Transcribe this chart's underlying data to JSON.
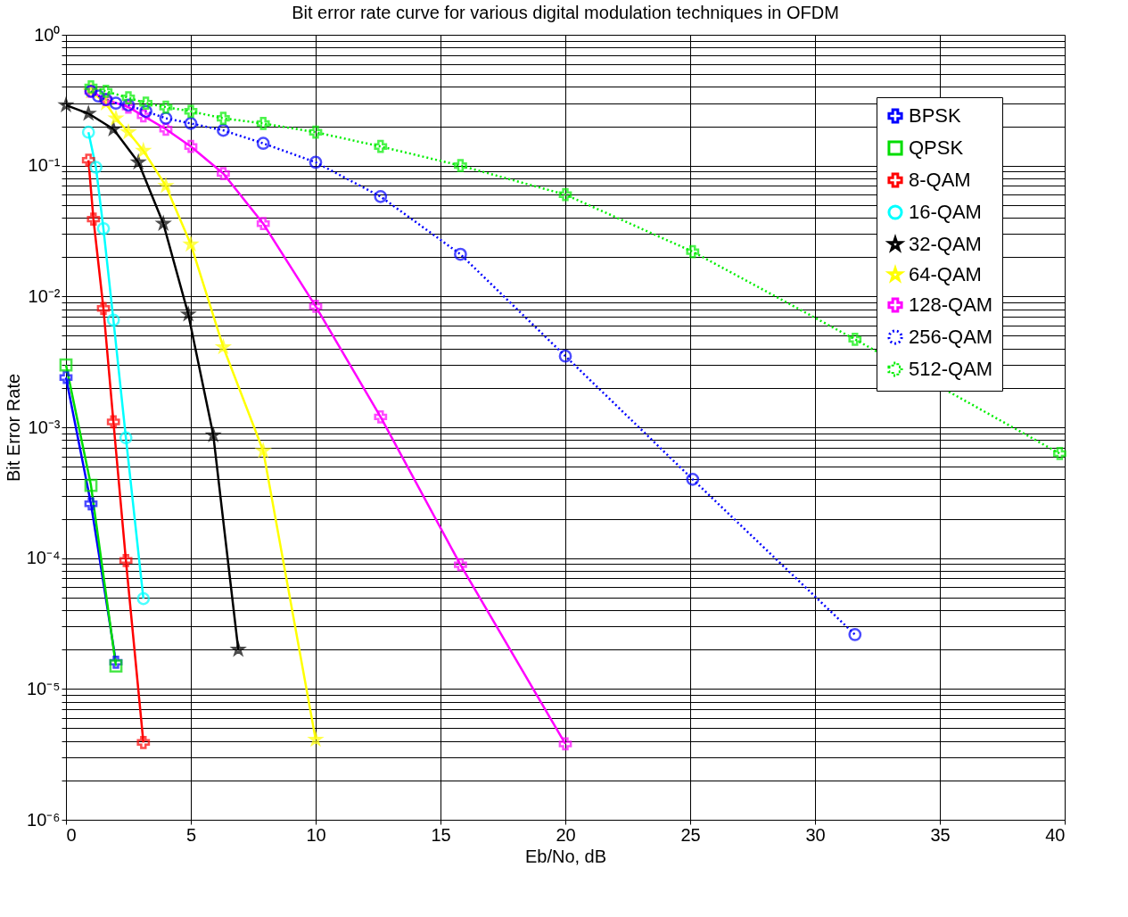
{
  "chart_data": {
    "type": "line",
    "title": "Bit error rate curve for various digital modulation techniques in OFDM",
    "xlabel": "Eb/No, dB",
    "ylabel": "Bit Error Rate",
    "log": "y",
    "grid": true,
    "legend": "top right",
    "xlim": [
      0,
      40
    ],
    "xticks": [
      0,
      5,
      10,
      15,
      20,
      25,
      30,
      35,
      40
    ],
    "ylim": [
      1e-06,
      1
    ],
    "yticks": [
      {
        "value": 1e-06,
        "label": "10⁻⁶"
      },
      {
        "value": 2e-06,
        "label": null
      },
      {
        "value": 3e-06,
        "label": null
      },
      {
        "value": 4e-06,
        "label": null
      },
      {
        "value": 5e-06,
        "label": null
      },
      {
        "value": 6e-06,
        "label": null
      },
      {
        "value": 7e-06,
        "label": null
      },
      {
        "value": 8e-06,
        "label": null
      },
      {
        "value": 9e-06,
        "label": null
      },
      {
        "value": 1e-05,
        "label": "10⁻⁵"
      },
      {
        "value": 2e-05,
        "label": null
      },
      {
        "value": 3e-05,
        "label": null
      },
      {
        "value": 4e-05,
        "label": null
      },
      {
        "value": 5e-05,
        "label": null
      },
      {
        "value": 6e-05,
        "label": null
      },
      {
        "value": 7e-05,
        "label": null
      },
      {
        "value": 8e-05,
        "label": null
      },
      {
        "value": 9e-05,
        "label": null
      },
      {
        "value": 0.0001,
        "label": "10⁻⁴"
      },
      {
        "value": 0.0002,
        "label": null
      },
      {
        "value": 0.0003,
        "label": null
      },
      {
        "value": 0.0004,
        "label": null
      },
      {
        "value": 0.0005,
        "label": null
      },
      {
        "value": 0.0006,
        "label": null
      },
      {
        "value": 0.0007,
        "label": null
      },
      {
        "value": 0.0008,
        "label": null
      },
      {
        "value": 0.0009,
        "label": null
      },
      {
        "value": 0.001,
        "label": "10⁻³"
      },
      {
        "value": 0.002,
        "label": null
      },
      {
        "value": 0.003,
        "label": null
      },
      {
        "value": 0.004,
        "label": null
      },
      {
        "value": 0.005,
        "label": null
      },
      {
        "value": 0.006,
        "label": null
      },
      {
        "value": 0.007,
        "label": null
      },
      {
        "value": 0.008,
        "label": null
      },
      {
        "value": 0.009,
        "label": null
      },
      {
        "value": 0.01,
        "label": "10⁻²"
      },
      {
        "value": 0.02,
        "label": null
      },
      {
        "value": 0.03,
        "label": null
      },
      {
        "value": 0.04,
        "label": null
      },
      {
        "value": 0.05,
        "label": null
      },
      {
        "value": 0.06,
        "label": null
      },
      {
        "value": 0.07,
        "label": null
      },
      {
        "value": 0.08,
        "label": null
      },
      {
        "value": 0.09,
        "label": null
      },
      {
        "value": 0.1,
        "label": "10⁻¹"
      },
      {
        "value": 0.2,
        "label": null
      },
      {
        "value": 0.3,
        "label": null
      },
      {
        "value": 0.4,
        "label": null
      },
      {
        "value": 0.5,
        "label": null
      },
      {
        "value": 0.6,
        "label": null
      },
      {
        "value": 0.7,
        "label": null
      },
      {
        "value": 0.8,
        "label": null
      },
      {
        "value": 0.9,
        "label": null
      },
      {
        "value": 1,
        "label": "10⁰"
      }
    ],
    "series": [
      {
        "name": "BPSK",
        "color": "#0000ff",
        "marker": "cross",
        "line_style": "solid",
        "x": [
          0,
          1,
          2
        ],
        "values": [
          0.0024,
          0.00026,
          1.6e-05
        ]
      },
      {
        "name": "QPSK",
        "color": "#00dd00",
        "marker": "square",
        "line_style": "solid",
        "x": [
          0,
          1,
          2
        ],
        "values": [
          0.003,
          0.00036,
          1.5e-05
        ]
      },
      {
        "name": "8-QAM",
        "color": "#ff0000",
        "marker": "cross",
        "line_style": "solid",
        "x": [
          0.9,
          1.1,
          1.5,
          1.9,
          2.4,
          3.1
        ],
        "values": [
          0.11,
          0.039,
          0.0081,
          0.0011,
          9.6e-05,
          3.9e-06
        ]
      },
      {
        "name": "16-QAM",
        "color": "#00ffff",
        "marker": "circle",
        "line_style": "solid",
        "x": [
          0.9,
          1.2,
          1.5,
          1.9,
          2.4,
          3.1
        ],
        "values": [
          0.18,
          0.097,
          0.033,
          0.0066,
          0.00083,
          4.9e-05
        ]
      },
      {
        "name": "32-QAM",
        "color": "#000000",
        "marker": "star",
        "line_style": "solid",
        "x": [
          0,
          0.9,
          1.9,
          2.9,
          3.9,
          4.9,
          5.9,
          6.9
        ],
        "values": [
          0.29,
          0.25,
          0.19,
          0.106,
          0.036,
          0.0073,
          0.00087,
          2e-05
        ]
      },
      {
        "name": "64-QAM",
        "color": "#ffff00",
        "marker": "star",
        "line_style": "solid",
        "x": [
          1.0,
          1.6,
          2.0,
          2.5,
          3.1,
          4.0,
          5.0,
          6.3,
          7.9,
          10.0
        ],
        "values": [
          0.37,
          0.3,
          0.23,
          0.18,
          0.13,
          0.07,
          0.025,
          0.0041,
          0.00066,
          4.1e-06
        ]
      },
      {
        "name": "128-QAM",
        "color": "#ff00ff",
        "marker": "cross",
        "line_style": "solid",
        "x": [
          1.0,
          1.6,
          2.5,
          3.1,
          4.0,
          5.0,
          6.3,
          7.9,
          10.0,
          12.6,
          15.8,
          20.0
        ],
        "values": [
          0.37,
          0.32,
          0.28,
          0.24,
          0.19,
          0.14,
          0.087,
          0.036,
          0.0084,
          0.0012,
          8.9e-05,
          3.8e-06
        ]
      },
      {
        "name": "256-QAM",
        "color": "#0000ff",
        "marker": "circle",
        "line_style": "dotted",
        "x": [
          1.0,
          1.3,
          1.6,
          2.0,
          2.5,
          3.2,
          4.0,
          5.0,
          6.3,
          7.9,
          10.0,
          12.6,
          15.8,
          20.0,
          25.1,
          31.6
        ],
        "values": [
          0.37,
          0.34,
          0.32,
          0.3,
          0.29,
          0.26,
          0.23,
          0.21,
          0.186,
          0.148,
          0.106,
          0.058,
          0.021,
          0.0035,
          0.0004,
          2.6e-05
        ]
      },
      {
        "name": "512-QAM",
        "color": "#00ee00",
        "marker": "cross",
        "line_style": "dotted",
        "x": [
          1.0,
          1.6,
          2.5,
          3.2,
          4.0,
          5.0,
          6.3,
          7.9,
          10.0,
          12.6,
          15.8,
          20.0,
          25.1,
          31.6,
          39.8
        ],
        "values": [
          0.4,
          0.37,
          0.33,
          0.3,
          0.28,
          0.26,
          0.23,
          0.21,
          0.18,
          0.14,
          0.1,
          0.06,
          0.022,
          0.0047,
          0.00063
        ]
      }
    ]
  }
}
